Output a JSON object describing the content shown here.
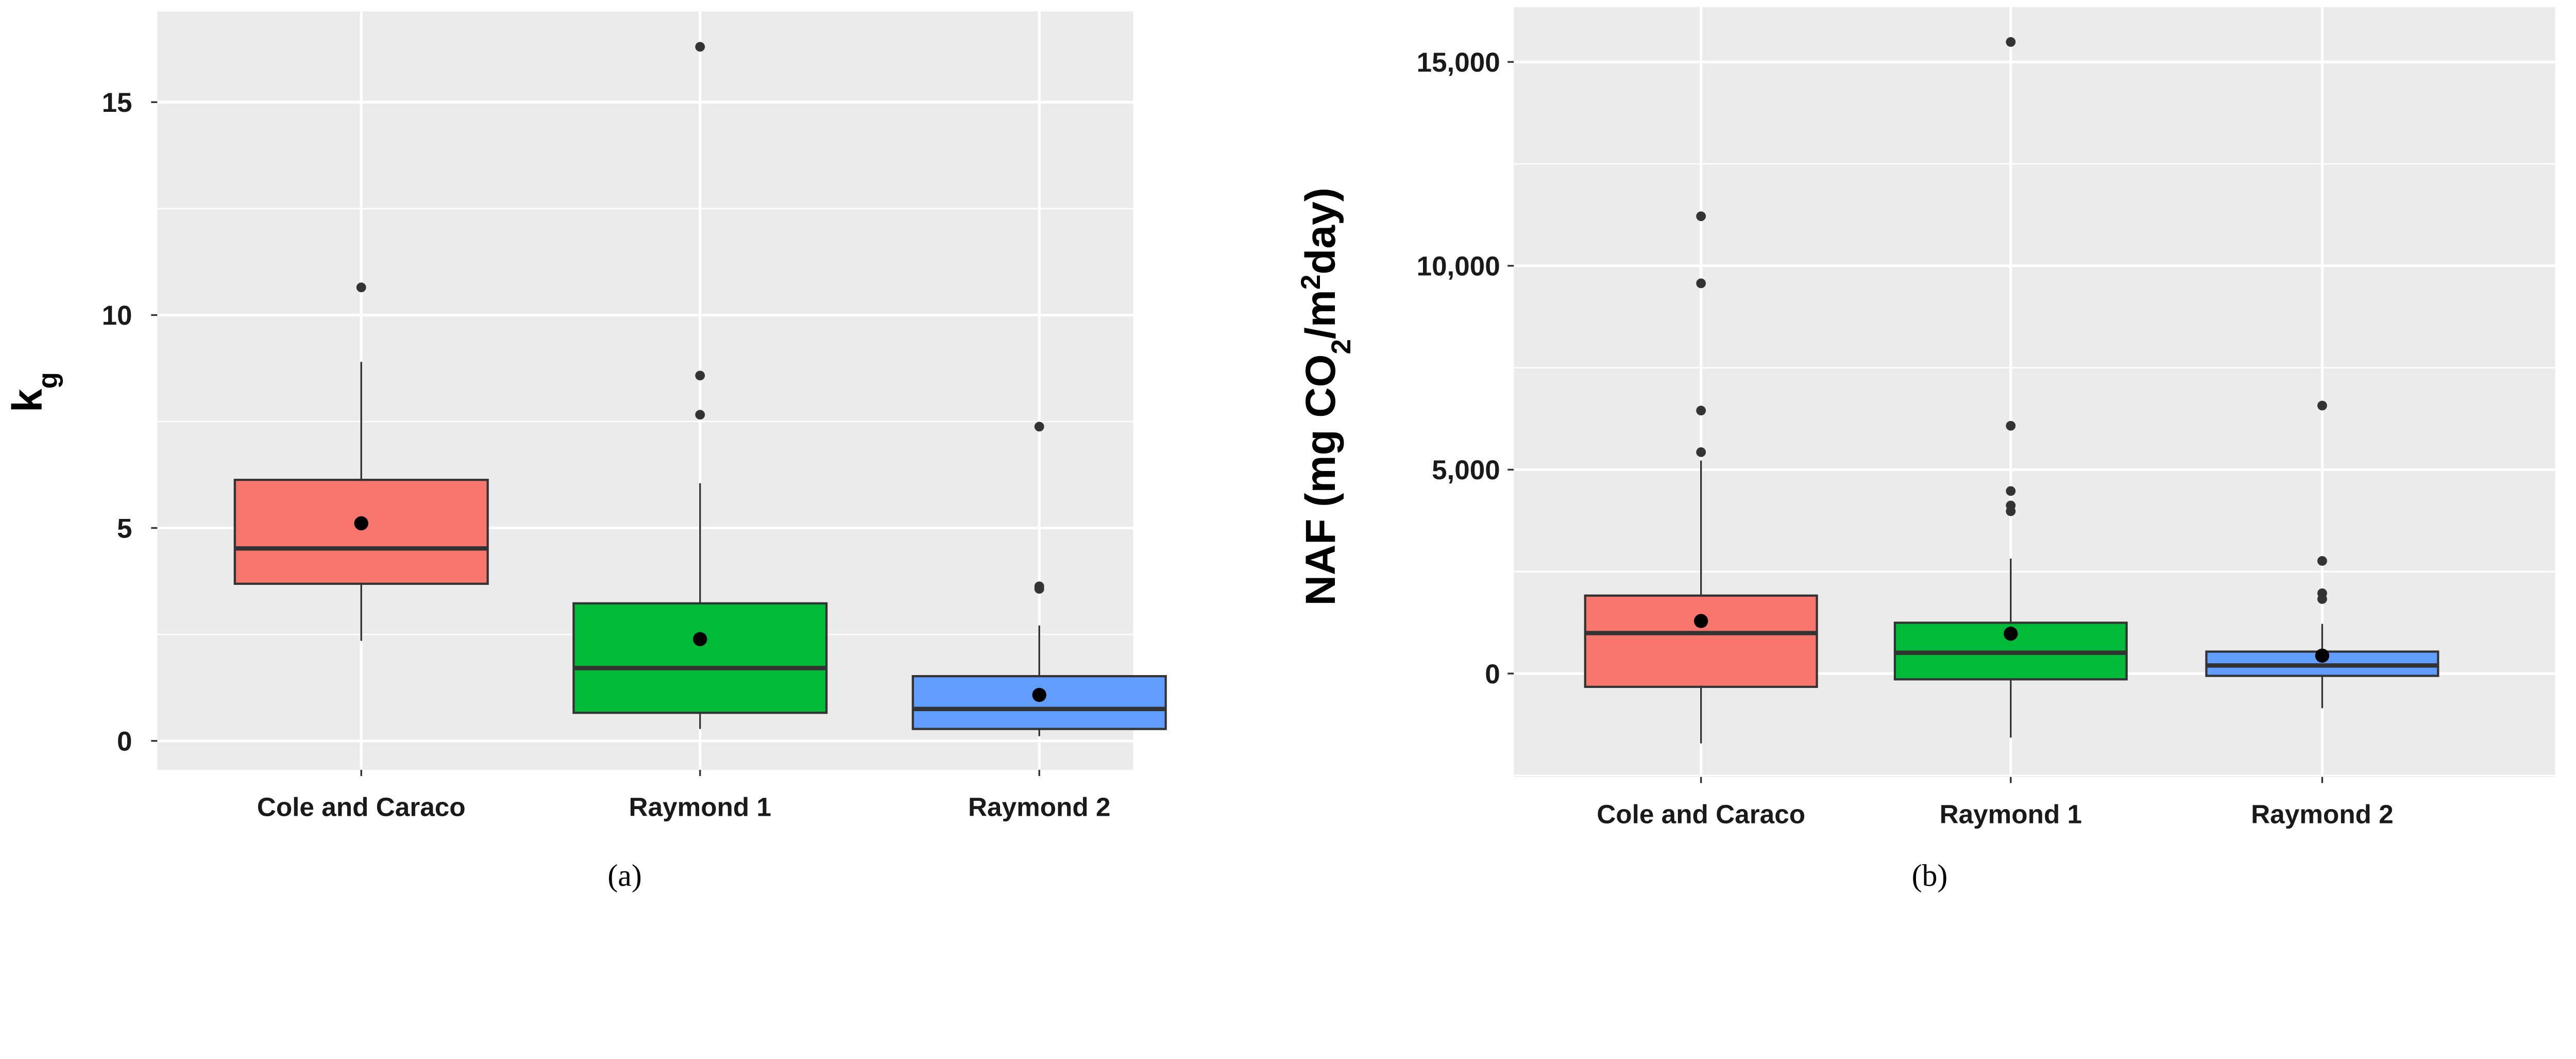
{
  "chart_data": [
    {
      "type": "box",
      "panel_label": "(a)",
      "ylabel_parts": [
        "k",
        "g"
      ],
      "ylim": [
        -0.68,
        17.13
      ],
      "yticks": [
        0,
        5,
        10,
        15
      ],
      "ytick_labels": [
        "0",
        "5",
        "10",
        "15"
      ],
      "grid": true,
      "categories": [
        "Cole and Caraco",
        "Raymond 1",
        "Raymond 2"
      ],
      "colors": [
        "#F8766D",
        "#00BA38",
        "#619CFF"
      ],
      "boxes": [
        {
          "lower_whisker": 2.35,
          "q1": 3.69,
          "median": 4.52,
          "q3": 6.13,
          "upper_whisker": 8.9,
          "mean": 5.11,
          "outliers": [
            10.65
          ]
        },
        {
          "lower_whisker": 0.28,
          "q1": 0.66,
          "median": 1.71,
          "q3": 3.23,
          "upper_whisker": 6.05,
          "mean": 2.39,
          "outliers": [
            16.3,
            8.58,
            7.66
          ]
        },
        {
          "lower_whisker": 0.11,
          "q1": 0.28,
          "median": 0.75,
          "q3": 1.52,
          "upper_whisker": 2.71,
          "mean": 1.08,
          "outliers": [
            7.38,
            3.63,
            3.57
          ]
        }
      ]
    },
    {
      "type": "box",
      "panel_label": "(b)",
      "ylabel_parts": [
        "NAF  (mg CO",
        "2",
        "/m",
        "2",
        "day)"
      ],
      "ylim": [
        -2535,
        16346
      ],
      "yticks": [
        0,
        5000,
        10000,
        15000
      ],
      "ytick_labels": [
        "0",
        "5,000",
        "10,000",
        "15,000"
      ],
      "grid": true,
      "categories": [
        "Cole and Caraco",
        "Raymond 1",
        "Raymond 2"
      ],
      "colors": [
        "#F8766D",
        "#00BA38",
        "#619CFF"
      ],
      "boxes": [
        {
          "lower_whisker": -1714,
          "q1": -326,
          "median": 992,
          "q3": 1912,
          "upper_whisker": 5225,
          "mean": 1289,
          "outliers": [
            11215,
            9570,
            6450,
            5430
          ]
        },
        {
          "lower_whisker": -1572,
          "q1": -142,
          "median": 510,
          "q3": 1246,
          "upper_whisker": 2819,
          "mean": 977,
          "outliers": [
            15490,
            6076,
            4476,
            4122,
            3980
          ]
        },
        {
          "lower_whisker": -850,
          "q1": -57,
          "median": 198,
          "q3": 538,
          "upper_whisker": 1218,
          "mean": 439,
          "outliers": [
            6572,
            2762,
            1969,
            1827
          ]
        }
      ]
    }
  ]
}
